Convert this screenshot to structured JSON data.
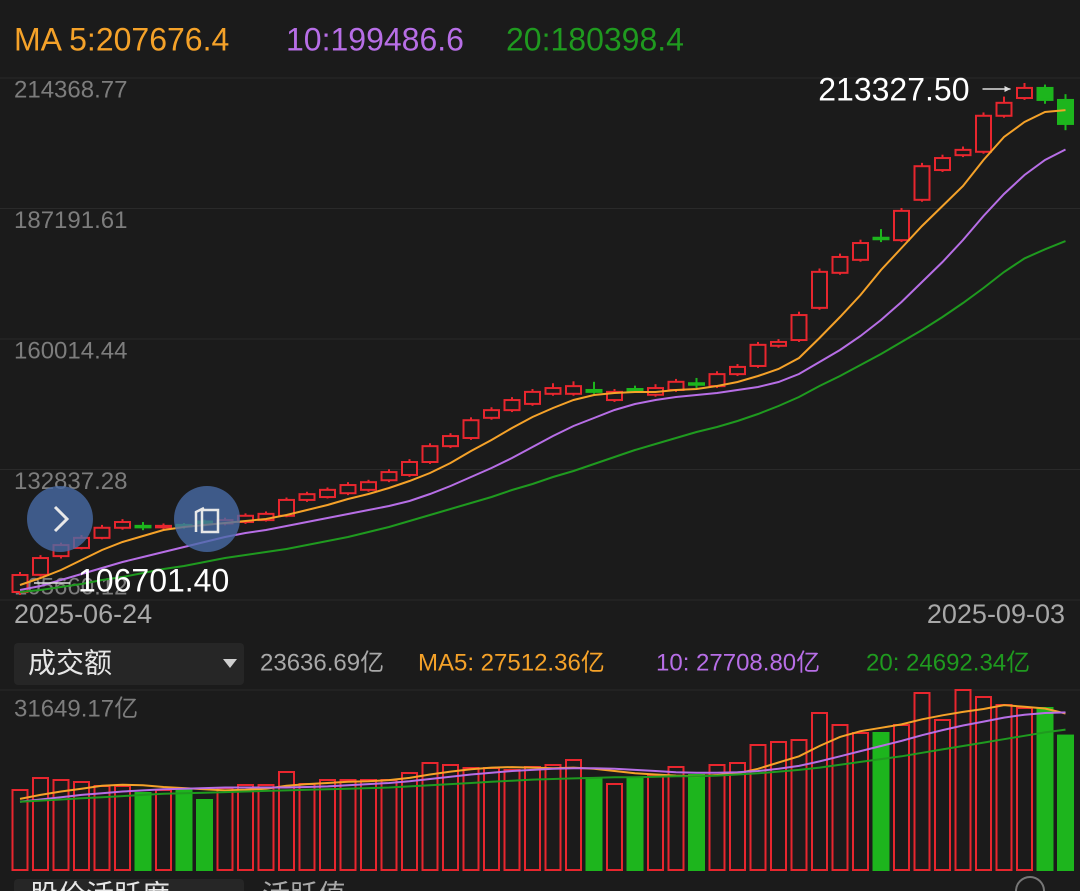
{
  "chart_data": [
    {
      "type": "candlestick",
      "categories": [
        "2025-06-24",
        null,
        null,
        null,
        null,
        null,
        null,
        null,
        null,
        null,
        null,
        null,
        null,
        null,
        null,
        null,
        null,
        null,
        null,
        null,
        null,
        null,
        null,
        null,
        null,
        null,
        null,
        null,
        null,
        null,
        null,
        null,
        null,
        null,
        null,
        null,
        null,
        null,
        null,
        null,
        null,
        null,
        null,
        null,
        null,
        null,
        null,
        null,
        null,
        null,
        null,
        "2025-09-03"
      ],
      "open": [
        107323,
        110900,
        114800,
        116500,
        118600,
        120700,
        121100,
        120800,
        121300,
        122000,
        121600,
        121900,
        122300,
        123200,
        126500,
        127100,
        127900,
        128600,
        130600,
        131700,
        134400,
        137700,
        139400,
        143600,
        145200,
        146500,
        148600,
        148600,
        149400,
        147300,
        149600,
        148400,
        149400,
        150800,
        150200,
        152700,
        154400,
        158600,
        159800,
        166500,
        173800,
        176500,
        181100,
        180600,
        189000,
        195200,
        198300,
        199000,
        206500,
        210200,
        212300,
        209800
      ],
      "high": [
        111500,
        115000,
        117600,
        119200,
        121300,
        122500,
        121900,
        121600,
        121700,
        122400,
        122800,
        123700,
        124100,
        127000,
        128200,
        129100,
        130200,
        130700,
        132900,
        135000,
        138300,
        140400,
        143700,
        145800,
        147900,
        149600,
        150800,
        151200,
        151100,
        149600,
        150300,
        150600,
        151700,
        151900,
        153300,
        154800,
        159400,
        160000,
        165700,
        174700,
        177800,
        180700,
        182900,
        187300,
        196700,
        198400,
        200100,
        207200,
        210500,
        213327.5,
        213000,
        211000
      ],
      "low": [
        106701.4,
        110500,
        114300,
        116200,
        118300,
        120300,
        120200,
        120400,
        120500,
        121000,
        121200,
        121500,
        122000,
        122900,
        126100,
        126800,
        127500,
        128200,
        130200,
        131300,
        134000,
        137300,
        139000,
        143200,
        144800,
        146100,
        148200,
        148200,
        148600,
        146900,
        148900,
        148000,
        149000,
        149800,
        149800,
        152300,
        154000,
        158200,
        159400,
        166100,
        173400,
        176100,
        180200,
        180200,
        188600,
        194800,
        197900,
        198600,
        206100,
        209800,
        209000,
        203500
      ],
      "close": [
        110864,
        114400,
        117100,
        118600,
        120700,
        121900,
        120900,
        121100,
        121000,
        121700,
        122300,
        123200,
        123600,
        126500,
        127700,
        128600,
        129600,
        130200,
        132300,
        134400,
        137700,
        139800,
        143100,
        145200,
        147300,
        149000,
        149800,
        150200,
        149000,
        149000,
        149300,
        149800,
        151100,
        150600,
        152700,
        154200,
        158800,
        159400,
        165000,
        174000,
        177100,
        180000,
        180900,
        186700,
        196000,
        197700,
        199400,
        206500,
        209200,
        212300,
        209800,
        204800
      ],
      "up_color": "#e8262e",
      "down_color": "#1db51d",
      "ylim": [
        105660.12,
        214368.77
      ],
      "yticks": [
        214368.77,
        187191.61,
        160014.44,
        132837.28,
        105660.12
      ],
      "grid": true,
      "max_label": "213327.50",
      "min_label": "106701.40",
      "lines": [
        {
          "name": "MA 5:207676.4",
          "color": "#f5a229",
          "values": [
            108781,
            110239,
            111905,
            113987,
            116070,
            117736,
            118986,
            120235,
            120860,
            121276,
            121693,
            122110,
            122526,
            123359,
            124400,
            125442,
            126691,
            127733,
            128982,
            130440,
            132106,
            134189,
            136688,
            138979,
            141478,
            143769,
            145643,
            147309,
            148350,
            148767,
            148975,
            148975,
            149392,
            149600,
            150225,
            151058,
            152307,
            153765,
            156056,
            160221,
            164595,
            169176,
            174383,
            178965,
            183546,
            187711,
            191877,
            197291,
            202081,
            205205,
            207288,
            207676.4
          ]
        },
        {
          "name": "10:199486.6",
          "color": "#b76ee6",
          "values": [
            107740,
            108573,
            109822,
            111072,
            112321,
            113571,
            114612,
            115653,
            116695,
            117736,
            118777,
            119610,
            120235,
            121068,
            121901,
            122734,
            123567,
            124400,
            125233,
            126275,
            127733,
            129399,
            131273,
            133147,
            135230,
            137521,
            139812,
            141894,
            143560,
            145226,
            146476,
            147309,
            147934,
            148350,
            148767,
            149392,
            150016,
            151058,
            152724,
            155223,
            157722,
            160638,
            163970,
            167718,
            171884,
            176049,
            180631,
            185629,
            190211,
            194167,
            197291,
            199486.6
          ]
        },
        {
          "name": "20:180398.4",
          "color": "#1f9a1f",
          "values": [
            107323,
            107740,
            108364,
            108989,
            109822,
            110447,
            111280,
            112113,
            112738,
            113571,
            114404,
            115029,
            115653,
            116278,
            117111,
            117944,
            118777,
            119819,
            120860,
            122110,
            123359,
            124609,
            125858,
            127108,
            128566,
            129815,
            131273,
            132523,
            133980,
            135438,
            136896,
            138146,
            139395,
            140645,
            141686,
            142936,
            144393,
            146059,
            147934,
            150225,
            152307,
            154598,
            156889,
            159388,
            161887,
            164595,
            167510,
            170634,
            173966,
            176800,
            178700,
            180398.4
          ]
        }
      ]
    },
    {
      "type": "volume",
      "indicator": "成交额",
      "current_label": "23636.69亿",
      "values": [
        14066,
        16176,
        15825,
        15473,
        14770,
        14770,
        13539,
        14066,
        14066,
        12308,
        14418,
        14946,
        14946,
        17231,
        15121,
        15825,
        15825,
        15825,
        15825,
        17056,
        18814,
        18462,
        17935,
        17935,
        17583,
        18110,
        18462,
        19341,
        16176,
        15121,
        16176,
        16704,
        18110,
        16704,
        18462,
        18814,
        21979,
        22506,
        22858,
        27605,
        25495,
        24089,
        24089,
        25495,
        31122,
        26375,
        31649.17,
        30419,
        29012,
        28484,
        28484,
        23636.69
      ],
      "ylim": [
        0,
        31649.17
      ],
      "yticks": [
        {
          "value": 31649.17,
          "label": "31649.17亿"
        }
      ],
      "lines": [
        {
          "name": "MA5: 27512.36亿",
          "color": "#f5a229",
          "values": [
            12500,
            13200,
            13800,
            14300,
            14800,
            15000,
            14900,
            14600,
            14400,
            14200,
            14000,
            14100,
            14300,
            14800,
            15100,
            15300,
            15500,
            15600,
            15800,
            16200,
            16800,
            17300,
            17700,
            18000,
            18100,
            18000,
            17900,
            18000,
            17800,
            17400,
            17000,
            16800,
            16600,
            16500,
            16700,
            17000,
            17800,
            18900,
            20000,
            21800,
            23400,
            24400,
            25000,
            25600,
            26500,
            27200,
            27800,
            28300,
            29000,
            28700,
            28400,
            27512.36
          ]
        },
        {
          "name": "10: 27708.80亿",
          "color": "#b76ee6",
          "values": [
            12000,
            12400,
            12800,
            13200,
            13500,
            13800,
            14000,
            14200,
            14300,
            14400,
            14500,
            14500,
            14500,
            14500,
            14600,
            14700,
            14900,
            15100,
            15300,
            15600,
            16000,
            16400,
            16800,
            17100,
            17400,
            17600,
            17800,
            17900,
            17900,
            17800,
            17600,
            17400,
            17200,
            17100,
            17100,
            17200,
            17400,
            17800,
            18300,
            19100,
            20000,
            20900,
            21800,
            22700,
            23700,
            24600,
            25400,
            26100,
            26800,
            27300,
            27600,
            27708.8
          ]
        },
        {
          "name": "20: 24692.34亿",
          "color": "#1f9a1f",
          "values": [
            12000,
            12200,
            12400,
            12600,
            12800,
            13000,
            13200,
            13400,
            13500,
            13600,
            13700,
            13800,
            13900,
            14000,
            14100,
            14200,
            14300,
            14400,
            14500,
            14700,
            14900,
            15100,
            15300,
            15500,
            15700,
            15900,
            16000,
            16100,
            16200,
            16300,
            16300,
            16400,
            16500,
            16500,
            16600,
            16800,
            17000,
            17300,
            17600,
            18000,
            18500,
            19000,
            19500,
            20000,
            20600,
            21200,
            21800,
            22400,
            23000,
            23600,
            24200,
            24692.34
          ]
        }
      ]
    }
  ],
  "footer": {
    "tabs": [
      "股价活跃度",
      "活跃值"
    ]
  }
}
